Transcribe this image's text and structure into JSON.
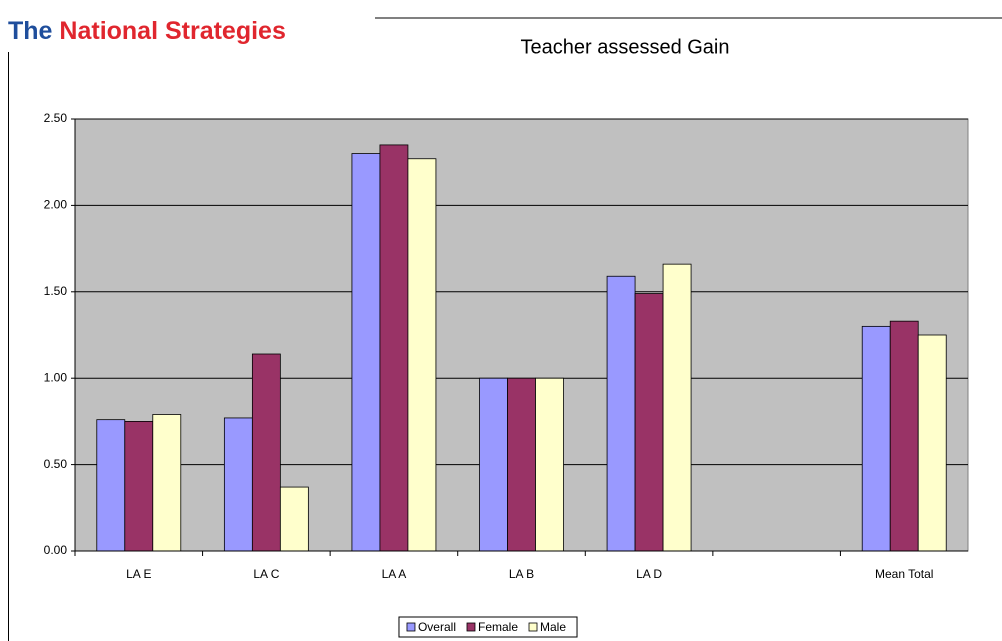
{
  "header": {
    "logo_prefix": "The",
    "logo": "National Strategies"
  },
  "chart_data": {
    "type": "bar",
    "title": "Teacher assessed Gain",
    "categories": [
      "LA E",
      "LA C",
      "LA A",
      "LA B",
      "LA D",
      null,
      "Mean Total"
    ],
    "series": [
      {
        "name": "Overall",
        "color": "#9999ff",
        "values": [
          0.76,
          0.77,
          2.3,
          1.0,
          1.59,
          null,
          1.3
        ]
      },
      {
        "name": "Female",
        "color": "#993366",
        "values": [
          0.75,
          1.14,
          2.35,
          1.0,
          1.49,
          null,
          1.33
        ]
      },
      {
        "name": "Male",
        "color": "#ffffcc",
        "values": [
          0.79,
          0.37,
          2.27,
          1.0,
          1.66,
          null,
          1.25
        ]
      }
    ],
    "ylim": [
      0,
      2.5
    ],
    "yticks": [
      {
        "value": 0,
        "label": "0.00"
      },
      {
        "value": 0.5,
        "label": "0.50"
      },
      {
        "value": 1,
        "label": "1.00"
      },
      {
        "value": 1.5,
        "label": "1.50"
      },
      {
        "value": 2,
        "label": "2.00"
      },
      {
        "value": 2.5,
        "label": "2.50"
      }
    ],
    "grid": true,
    "plot_background": "#c0c0c0",
    "legend": "bottom"
  }
}
